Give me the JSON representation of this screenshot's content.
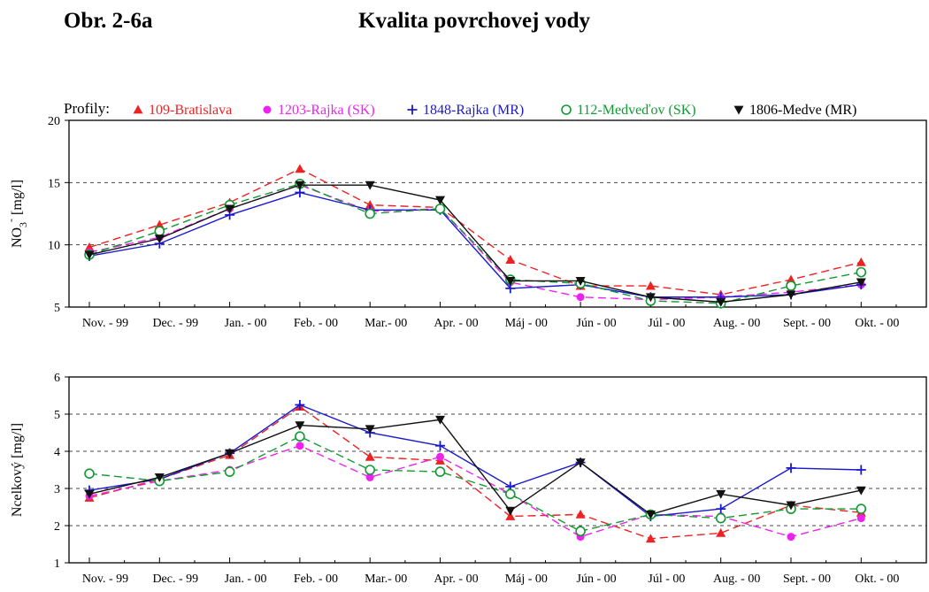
{
  "header": {
    "figure_number": "Obr. 2-6a",
    "title": "Kvalita povrchovej vody"
  },
  "legend": {
    "prefix": "Profily:"
  },
  "series_style": [
    {
      "color": "#ee2222",
      "marker": "triangle",
      "dash": "dashed"
    },
    {
      "color": "#ee22ee",
      "marker": "circle-filled",
      "dash": "dashed"
    },
    {
      "color": "#1a1acc",
      "marker": "plus",
      "dash": "solid"
    },
    {
      "color": "#119933",
      "marker": "circle-open",
      "dash": "dashed"
    },
    {
      "color": "#111111",
      "marker": "triangle-down",
      "dash": "solid"
    }
  ],
  "chart_data": [
    {
      "type": "line",
      "categories": [
        "Nov. - 99",
        "Dec. - 99",
        "Jan. - 00",
        "Feb. - 00",
        "Mar.- 00",
        "Apr. - 00",
        "Máj - 00",
        "Jún - 00",
        "Júl - 00",
        "Aug. - 00",
        "Sept. - 00",
        "Okt. - 00"
      ],
      "ylabel": "NO3- [mg/l]",
      "ylim": [
        5,
        20
      ],
      "yticks": [
        5,
        10,
        15,
        20
      ],
      "grid": "horizontal dashed",
      "legend_position": "top",
      "series": [
        {
          "name": "109-Bratislava",
          "values": [
            9.8,
            11.6,
            13.4,
            16.1,
            13.2,
            13.0,
            8.8,
            6.7,
            6.7,
            6.0,
            7.2,
            8.6
          ]
        },
        {
          "name": "1203-Rajka (SK)",
          "values": [
            9.4,
            10.6,
            12.9,
            14.8,
            12.7,
            12.9,
            7.0,
            5.8,
            5.6,
            5.8,
            6.2,
            6.8
          ]
        },
        {
          "name": "1848-Rajka (MR)",
          "values": [
            9.1,
            10.1,
            12.4,
            14.2,
            12.8,
            12.8,
            6.5,
            6.8,
            5.8,
            5.8,
            6.0,
            6.8
          ]
        },
        {
          "name": "112-Medveďov (SK)",
          "values": [
            9.2,
            11.1,
            13.2,
            14.9,
            12.5,
            12.9,
            7.2,
            6.9,
            5.5,
            5.3,
            6.7,
            7.8
          ]
        },
        {
          "name": "1806-Medve (MR)",
          "values": [
            9.2,
            10.5,
            12.9,
            14.8,
            14.8,
            13.6,
            7.1,
            7.1,
            5.8,
            5.4,
            6.0,
            7.0
          ]
        }
      ]
    },
    {
      "type": "line",
      "categories": [
        "Nov. - 99",
        "Dec. - 99",
        "Jan. - 00",
        "Feb. - 00",
        "Mar.- 00",
        "Apr. - 00",
        "Máj - 00",
        "Jún - 00",
        "Júl - 00",
        "Aug. - 00",
        "Sept. - 00",
        "Okt. - 00"
      ],
      "ylabel": "Ncelkový [mg/l]",
      "ylim": [
        1,
        6
      ],
      "yticks": [
        1,
        2,
        3,
        4,
        5,
        6
      ],
      "grid": "horizontal dashed",
      "series": [
        {
          "name": "109-Bratislava",
          "values": [
            2.75,
            3.25,
            3.9,
            5.2,
            3.85,
            3.75,
            2.25,
            2.3,
            1.65,
            1.8,
            2.55,
            2.35
          ]
        },
        {
          "name": "1203-Rajka (SK)",
          "values": [
            2.8,
            3.2,
            3.5,
            4.15,
            3.3,
            3.85,
            2.85,
            1.7,
            2.3,
            2.25,
            1.7,
            2.2
          ]
        },
        {
          "name": "1848-Rajka (MR)",
          "values": [
            2.95,
            3.25,
            3.95,
            5.25,
            4.5,
            4.15,
            3.05,
            3.7,
            2.25,
            2.45,
            3.55,
            3.5
          ]
        },
        {
          "name": "112-Medveďov (SK)",
          "values": [
            3.4,
            3.2,
            3.45,
            4.4,
            3.5,
            3.45,
            2.85,
            1.85,
            2.3,
            2.2,
            2.45,
            2.45
          ]
        },
        {
          "name": "1806-Medve (MR)",
          "values": [
            2.85,
            3.3,
            3.95,
            4.7,
            4.6,
            4.85,
            2.4,
            3.7,
            2.3,
            2.85,
            2.55,
            2.95
          ]
        }
      ]
    }
  ]
}
